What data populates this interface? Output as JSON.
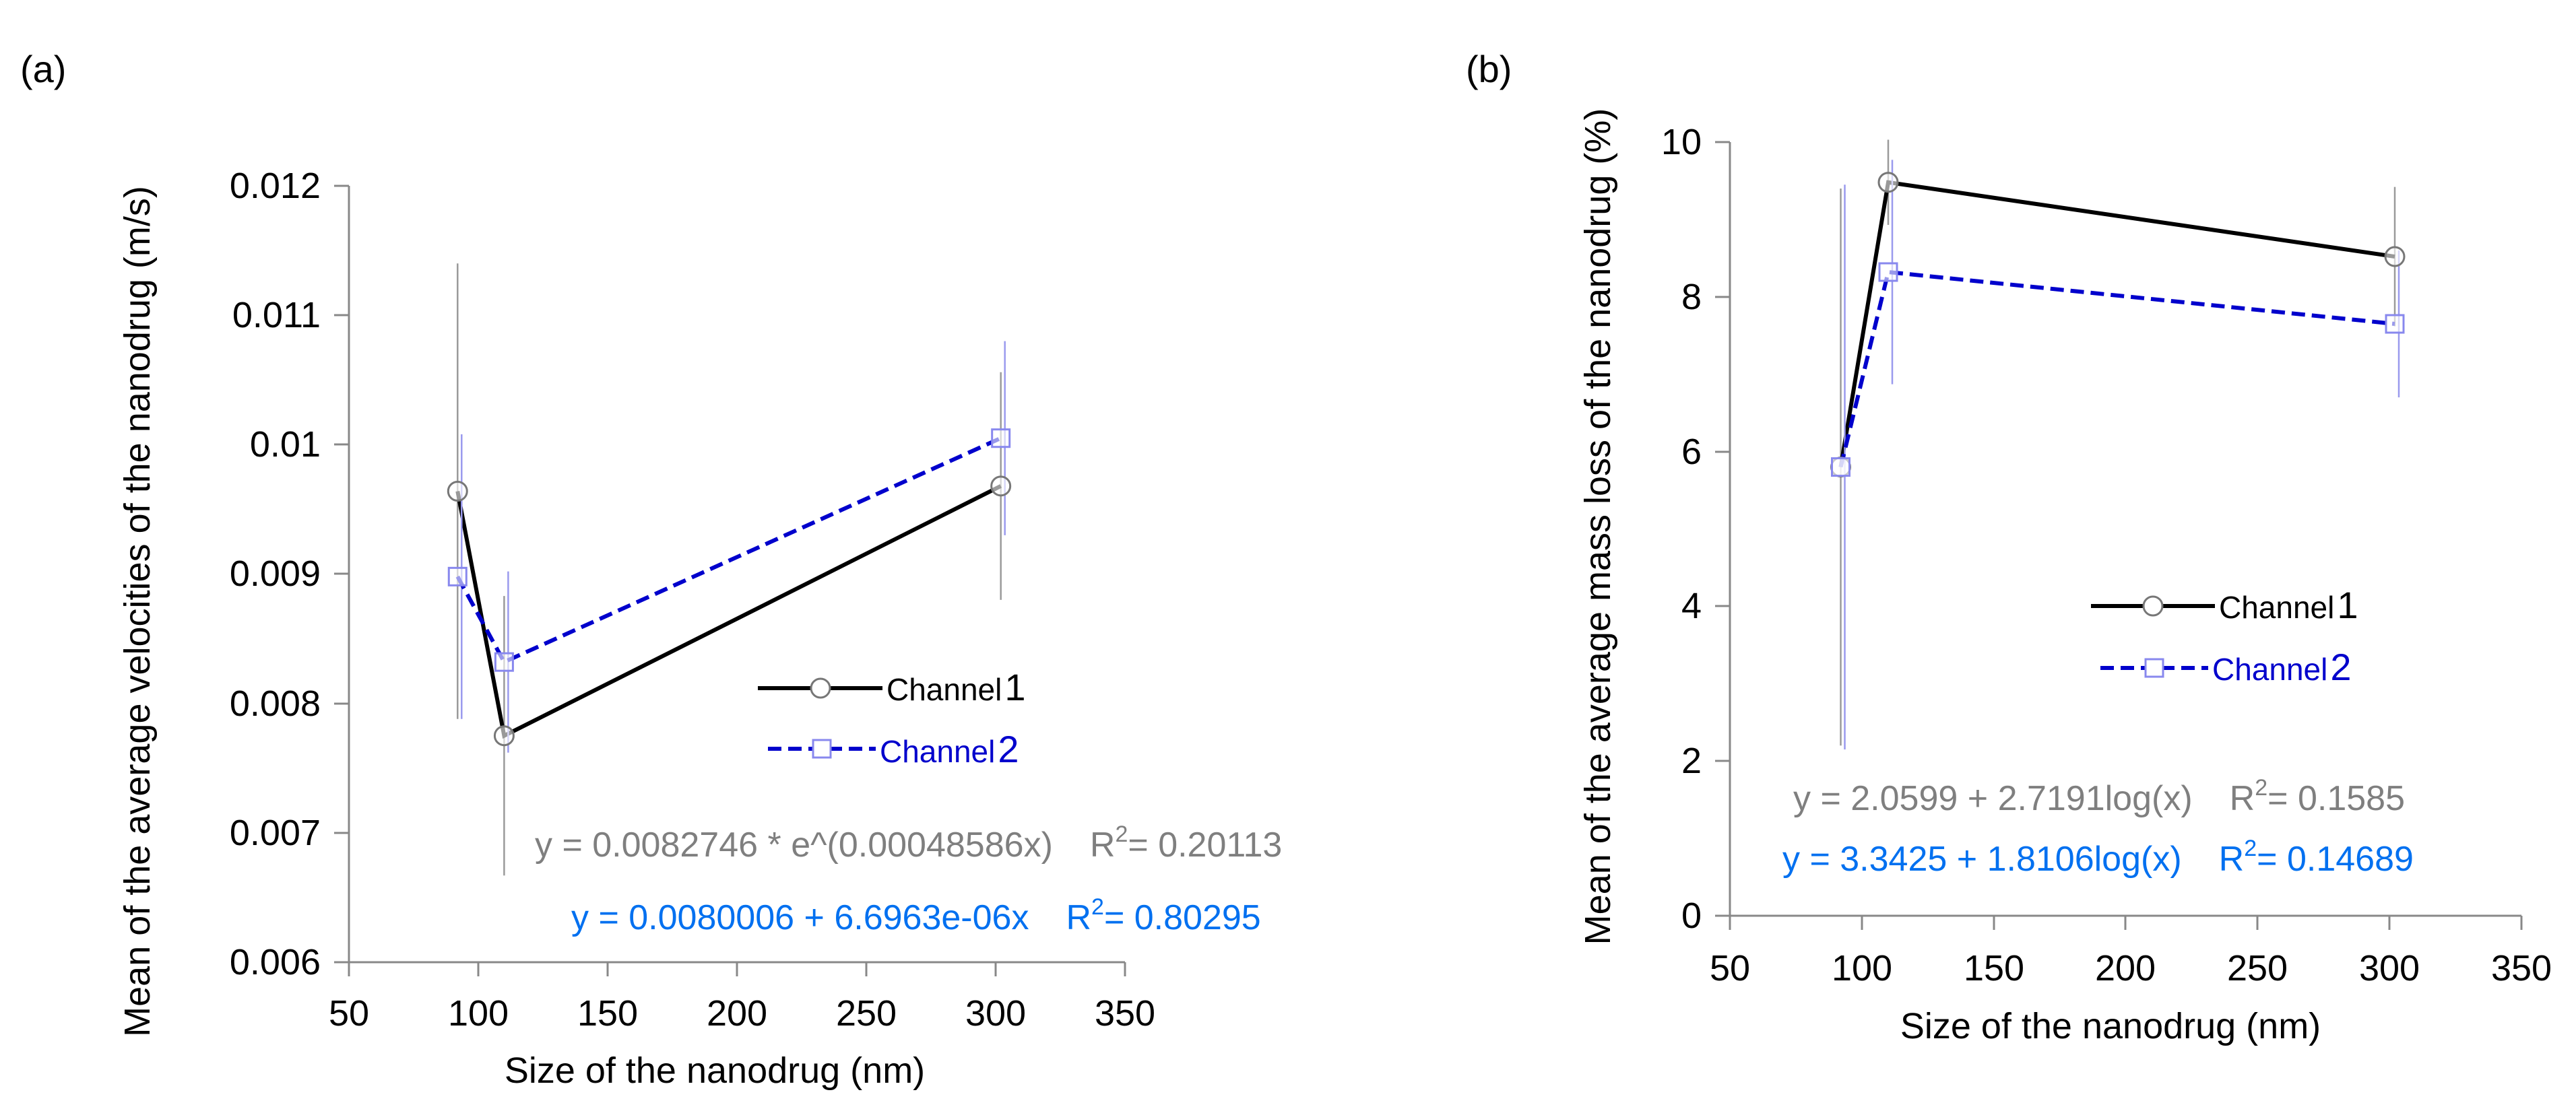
{
  "chart_data": [
    {
      "type": "line",
      "panel_label": "(a)",
      "xlabel": "Size of the nanodrug (nm)",
      "ylabel": "Mean of the average velocities of the nanodrug (m/s)",
      "xlim": [
        50,
        350
      ],
      "ylim": [
        0.006,
        0.012
      ],
      "xticks": [
        "50",
        "100",
        "150",
        "200",
        "250",
        "300",
        "350"
      ],
      "yticks": [
        "0.006",
        "0.007",
        "0.008",
        "0.009",
        "0.01",
        "0.011",
        "0.012"
      ],
      "grid": false,
      "legend_position": "center-right",
      "series": [
        {
          "name_text": "Channel",
          "name_num": "1",
          "color": "#000000",
          "style": "solid",
          "marker": "circle",
          "x": [
            92,
            110,
            302
          ],
          "y": [
            0.00964,
            0.00775,
            0.00968
          ],
          "err": [
            0.00176,
            0.00108,
            0.00088
          ]
        },
        {
          "name_text": "Channel",
          "name_num": "2",
          "color": "#0000cc",
          "style": "dashed",
          "marker": "square",
          "x": [
            92,
            110,
            302
          ],
          "y": [
            0.00898,
            0.00832,
            0.01005
          ],
          "err": [
            0.0011,
            0.0007,
            0.00075
          ]
        }
      ],
      "annotations": [
        {
          "color": "#7f7f7f",
          "eq": "y = 0.0082746 * e^(0.00048586x)",
          "r_prefix": "R",
          "r_sup": "2",
          "r_val": "= 0.20113"
        },
        {
          "color": "#0070f0",
          "eq": "y = 0.0080006 + 6.6963e-06x",
          "r_prefix": "R",
          "r_sup": "2",
          "r_val": "= 0.80295"
        }
      ]
    },
    {
      "type": "line",
      "panel_label": "(b)",
      "xlabel": "Size of the nanodrug (nm)",
      "ylabel": "Mean of the average mass loss of the nanodrug (%)",
      "xlim": [
        50,
        350
      ],
      "ylim": [
        0,
        10
      ],
      "xticks": [
        "50",
        "100",
        "150",
        "200",
        "250",
        "300",
        "350"
      ],
      "yticks": [
        "0",
        "2",
        "4",
        "6",
        "8",
        "10"
      ],
      "grid": false,
      "legend_position": "center-right",
      "series": [
        {
          "name_text": "Channel",
          "name_num": "1",
          "color": "#000000",
          "style": "solid",
          "marker": "circle",
          "x": [
            92,
            110,
            302
          ],
          "y": [
            5.8,
            9.48,
            8.52
          ],
          "err": [
            3.6,
            0.55,
            0.9
          ]
        },
        {
          "name_text": "Channel",
          "name_num": "2",
          "color": "#0000cc",
          "style": "dashed",
          "marker": "square",
          "x": [
            92,
            110,
            302
          ],
          "y": [
            5.8,
            8.32,
            7.65
          ],
          "err": [
            3.65,
            1.45,
            0.95
          ]
        }
      ],
      "annotations": [
        {
          "color": "#7f7f7f",
          "eq": "y = 2.0599 + 2.7191log(x)",
          "r_prefix": "R",
          "r_sup": "2",
          "r_val": "= 0.1585"
        },
        {
          "color": "#0070f0",
          "eq": "y = 3.3425 + 1.8106log(x)",
          "r_prefix": "R",
          "r_sup": "2",
          "r_val": "= 0.14689"
        }
      ]
    }
  ]
}
